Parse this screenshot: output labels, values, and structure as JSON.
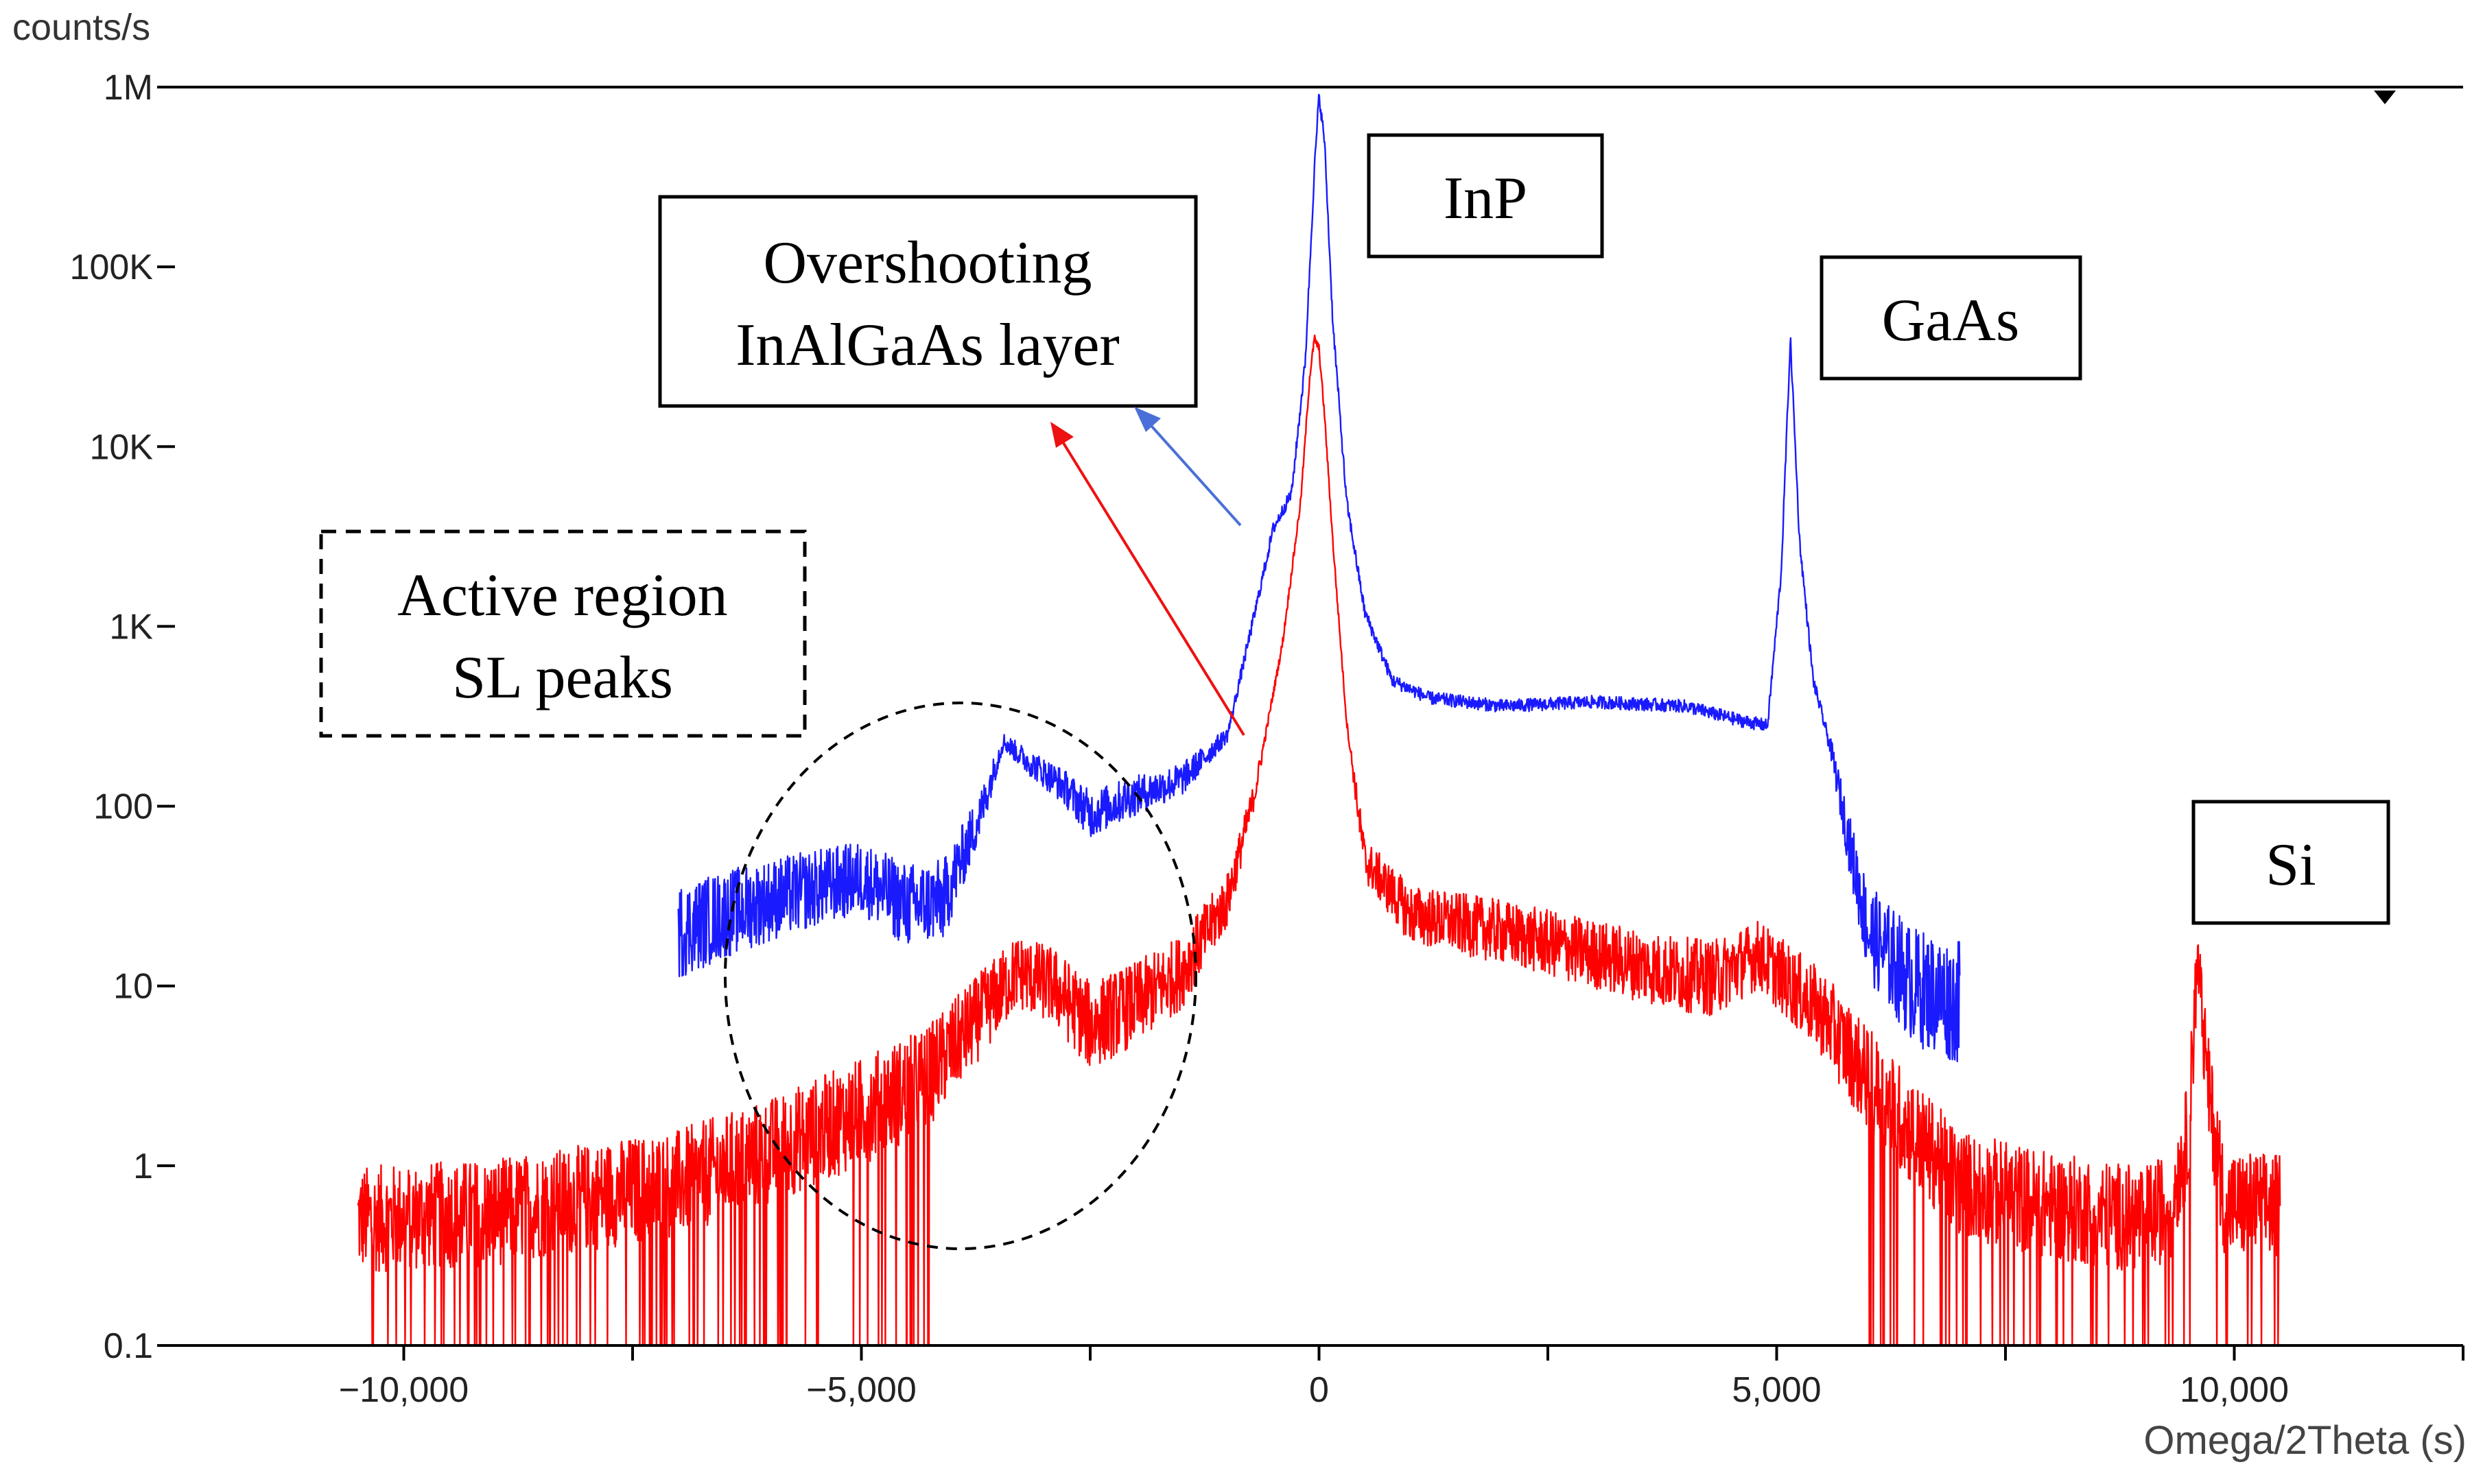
{
  "chart_data": {
    "type": "line",
    "title": "",
    "xlabel": "Omega/2Theta (s)",
    "ylabel": "counts/s",
    "yscale": "log",
    "xlim": [
      -12500,
      12500
    ],
    "ylim": [
      0.1,
      1000000
    ],
    "x_ticks": [
      -10000,
      -5000,
      0,
      5000,
      10000
    ],
    "x_tick_labels": [
      "−10,000",
      "−5,000",
      "0",
      "5,000",
      "10,000"
    ],
    "y_ticks": [
      0.1,
      1,
      10,
      100,
      1000,
      10000,
      100000,
      1000000
    ],
    "y_tick_labels": [
      "0.1",
      "1",
      "10",
      "100",
      "1K",
      "10K",
      "100K",
      "1M"
    ],
    "grid": false,
    "series": [
      {
        "name": "blue scan",
        "color": "#1a1aff",
        "noise": 0.45,
        "x": [
          -7000,
          -6500,
          -6000,
          -5500,
          -5000,
          -4500,
          -4100,
          -3700,
          -3450,
          -3200,
          -2800,
          -2500,
          -2100,
          -1500,
          -1000,
          -700,
          -500,
          -300,
          -150,
          -50,
          0,
          60,
          150,
          300,
          500,
          800,
          1200,
          2000,
          3000,
          4000,
          4600,
          4900,
          5050,
          5150,
          5250,
          5400,
          5600,
          5800,
          6000,
          6500,
          7000
        ],
        "values": [
          20,
          25,
          30,
          35,
          40,
          28,
          30,
          90,
          230,
          180,
          130,
          90,
          110,
          140,
          250,
          1200,
          3500,
          5500,
          30000,
          350000,
          900000,
          500000,
          50000,
          5000,
          1200,
          500,
          400,
          360,
          380,
          360,
          300,
          280,
          2000,
          40000,
          3000,
          500,
          200,
          60,
          20,
          10,
          8
        ]
      },
      {
        "name": "red scan",
        "color": "#ff0000",
        "noise": 0.3,
        "x": [
          -10500,
          -9000,
          -7000,
          -6000,
          -5000,
          -4300,
          -3800,
          -3300,
          -2900,
          -2500,
          -2000,
          -1500,
          -1000,
          -700,
          -400,
          -200,
          -100,
          -50,
          0,
          60,
          150,
          300,
          500,
          1000,
          2000,
          3000,
          3800,
          4300,
          4800,
          5500,
          6000,
          6500,
          7000,
          8000,
          9000,
          9300,
          9500,
          9600,
          9700,
          9900,
          10500
        ],
        "values": [
          0.5,
          0.55,
          0.8,
          1.2,
          2,
          3,
          6,
          12,
          10,
          6,
          8,
          12,
          30,
          120,
          800,
          5000,
          25000,
          40000,
          35000,
          15000,
          3000,
          300,
          50,
          25,
          20,
          15,
          12,
          11,
          15,
          7,
          3,
          1.5,
          0.8,
          0.6,
          0.5,
          0.6,
          1.5,
          15,
          3,
          0.6,
          0.6
        ]
      }
    ],
    "annotations": [
      {
        "id": "inp",
        "lines": [
          "InP"
        ],
        "border": "solid"
      },
      {
        "id": "gaas",
        "lines": [
          "GaAs"
        ],
        "border": "solid"
      },
      {
        "id": "si",
        "lines": [
          "Si"
        ],
        "border": "solid"
      },
      {
        "id": "overshoot",
        "lines": [
          "Overshooting",
          "InAlGaAs layer"
        ],
        "border": "solid"
      },
      {
        "id": "active",
        "lines": [
          "Active region",
          "SL peaks"
        ],
        "border": "dashed"
      }
    ],
    "arrows": [
      {
        "color": "#4a6fd8",
        "points_to": "overshoot"
      },
      {
        "color": "#ee1111",
        "points_to": "overshoot"
      }
    ]
  }
}
